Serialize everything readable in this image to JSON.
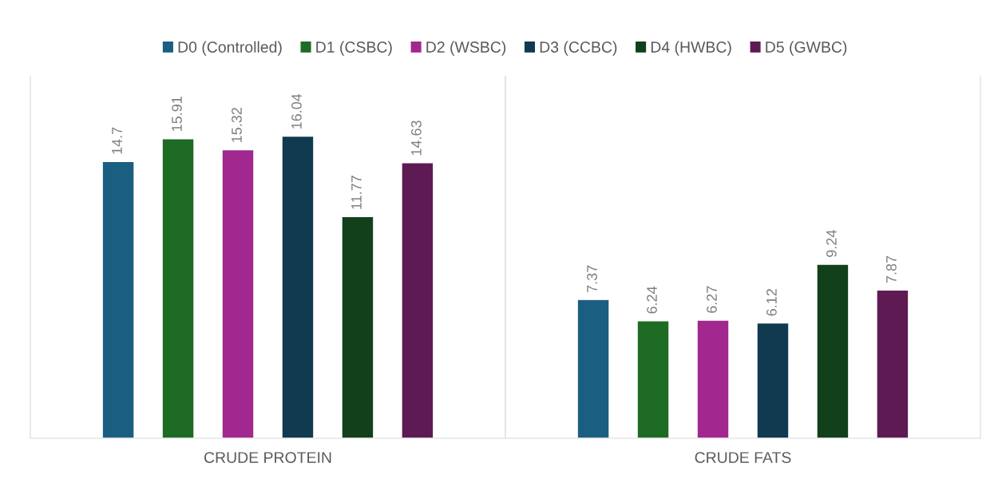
{
  "chart_data": {
    "type": "bar",
    "categories": [
      "CRUDE PROTEIN",
      "CRUDE FATS"
    ],
    "series": [
      {
        "name": "D0 (Controlled)",
        "color": "#1a5e82",
        "values": [
          14.7,
          7.37
        ]
      },
      {
        "name": "D1 (CSBC)",
        "color": "#1e6b24",
        "values": [
          15.91,
          6.24
        ]
      },
      {
        "name": "D2 (WSBC)",
        "color": "#a0288f",
        "values": [
          15.32,
          6.27
        ]
      },
      {
        "name": "D3 (CCBC)",
        "color": "#0f3a50",
        "values": [
          16.04,
          6.12
        ]
      },
      {
        "name": "D4 (HWBC)",
        "color": "#12401a",
        "values": [
          11.77,
          9.24
        ]
      },
      {
        "name": "D5 (GWBC)",
        "color": "#5e1a52",
        "values": [
          14.63,
          7.87
        ]
      }
    ],
    "data_labels": true,
    "legend": "top",
    "grid": false,
    "tick_labels": "x"
  }
}
